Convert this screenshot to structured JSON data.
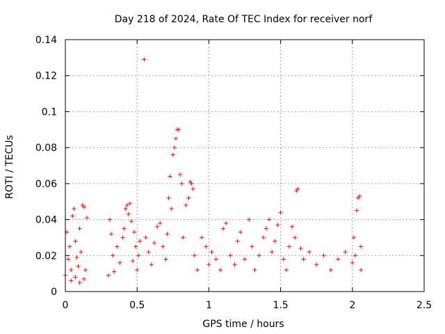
{
  "chart_data": {
    "type": "scatter",
    "title": "Day 218 of 2024, Rate Of TEC Index for receiver norf",
    "xlabel": "GPS time / hours",
    "ylabel": "ROTI / TECUs",
    "xlim": [
      0,
      2.5
    ],
    "ylim": [
      0,
      0.14
    ],
    "xticks": [
      0,
      0.5,
      1,
      1.5,
      2,
      2.5
    ],
    "xtick_labels": [
      "0",
      "0.5",
      "1",
      "1.5",
      "2",
      "2.5"
    ],
    "yticks": [
      0,
      0.02,
      0.04,
      0.06,
      0.08,
      0.1,
      0.12,
      0.14
    ],
    "ytick_labels": [
      "0",
      "0.02",
      "0.04",
      "0.06",
      "0.08",
      "0.1",
      "0.12",
      "0.14"
    ],
    "grid": true,
    "marker": "+",
    "series": [
      {
        "name": "ROTI",
        "color": "#ff0000",
        "points": [
          [
            0.0,
            0.009
          ],
          [
            0.01,
            0.033
          ],
          [
            0.02,
            0.018
          ],
          [
            0.03,
            0.025
          ],
          [
            0.04,
            0.012
          ],
          [
            0.05,
            0.042
          ],
          [
            0.06,
            0.046
          ],
          [
            0.07,
            0.028
          ],
          [
            0.08,
            0.019
          ],
          [
            0.09,
            0.014
          ],
          [
            0.1,
            0.035
          ],
          [
            0.11,
            0.022
          ],
          [
            0.12,
            0.048
          ],
          [
            0.13,
            0.047
          ],
          [
            0.14,
            0.012
          ],
          [
            0.15,
            0.041
          ],
          [
            0.04,
            0.006
          ],
          [
            0.07,
            0.008
          ],
          [
            0.1,
            0.005
          ],
          [
            0.13,
            0.007
          ],
          [
            0.3,
            0.009
          ],
          [
            0.31,
            0.04
          ],
          [
            0.32,
            0.032
          ],
          [
            0.33,
            0.02
          ],
          [
            0.34,
            0.011
          ],
          [
            0.36,
            0.025
          ],
          [
            0.38,
            0.016
          ],
          [
            0.4,
            0.03
          ],
          [
            0.41,
            0.035
          ],
          [
            0.42,
            0.046
          ],
          [
            0.43,
            0.048
          ],
          [
            0.44,
            0.043
          ],
          [
            0.45,
            0.049
          ],
          [
            0.46,
            0.039
          ],
          [
            0.47,
            0.017
          ],
          [
            0.48,
            0.033
          ],
          [
            0.49,
            0.025
          ],
          [
            0.5,
            0.012
          ],
          [
            0.51,
            0.02
          ],
          [
            0.52,
            0.028
          ],
          [
            0.55,
            0.129
          ],
          [
            0.56,
            0.03
          ],
          [
            0.58,
            0.022
          ],
          [
            0.6,
            0.015
          ],
          [
            0.62,
            0.027
          ],
          [
            0.64,
            0.036
          ],
          [
            0.66,
            0.038
          ],
          [
            0.68,
            0.025
          ],
          [
            0.7,
            0.018
          ],
          [
            0.71,
            0.032
          ],
          [
            0.72,
            0.052
          ],
          [
            0.73,
            0.064
          ],
          [
            0.74,
            0.046
          ],
          [
            0.75,
            0.076
          ],
          [
            0.76,
            0.08
          ],
          [
            0.77,
            0.085
          ],
          [
            0.78,
            0.09
          ],
          [
            0.79,
            0.09
          ],
          [
            0.8,
            0.065
          ],
          [
            0.81,
            0.06
          ],
          [
            0.82,
            0.03
          ],
          [
            0.84,
            0.048
          ],
          [
            0.86,
            0.052
          ],
          [
            0.87,
            0.061
          ],
          [
            0.88,
            0.06
          ],
          [
            0.89,
            0.057
          ],
          [
            0.9,
            0.02
          ],
          [
            0.92,
            0.012
          ],
          [
            0.95,
            0.03
          ],
          [
            0.98,
            0.025
          ],
          [
            1.0,
            0.015
          ],
          [
            1.02,
            0.022
          ],
          [
            1.05,
            0.018
          ],
          [
            1.08,
            0.012
          ],
          [
            1.1,
            0.035
          ],
          [
            1.12,
            0.038
          ],
          [
            1.15,
            0.02
          ],
          [
            1.18,
            0.015
          ],
          [
            1.2,
            0.028
          ],
          [
            1.22,
            0.033
          ],
          [
            1.25,
            0.018
          ],
          [
            1.28,
            0.04
          ],
          [
            1.3,
            0.025
          ],
          [
            1.32,
            0.012
          ],
          [
            1.35,
            0.02
          ],
          [
            1.38,
            0.03
          ],
          [
            1.4,
            0.035
          ],
          [
            1.42,
            0.04
          ],
          [
            1.44,
            0.022
          ],
          [
            1.46,
            0.028
          ],
          [
            1.48,
            0.037
          ],
          [
            1.5,
            0.044
          ],
          [
            1.52,
            0.018
          ],
          [
            1.54,
            0.012
          ],
          [
            1.56,
            0.025
          ],
          [
            1.58,
            0.036
          ],
          [
            1.6,
            0.03
          ],
          [
            1.61,
            0.056
          ],
          [
            1.62,
            0.057
          ],
          [
            1.64,
            0.024
          ],
          [
            1.66,
            0.018
          ],
          [
            1.7,
            0.022
          ],
          [
            1.75,
            0.015
          ],
          [
            1.8,
            0.02
          ],
          [
            1.85,
            0.012
          ],
          [
            1.9,
            0.018
          ],
          [
            1.95,
            0.022
          ],
          [
            2.0,
            0.016
          ],
          [
            2.01,
            0.03
          ],
          [
            2.02,
            0.02
          ],
          [
            2.03,
            0.045
          ],
          [
            2.04,
            0.052
          ],
          [
            2.05,
            0.053
          ],
          [
            2.06,
            0.025
          ],
          [
            2.06,
            0.012
          ]
        ]
      }
    ]
  }
}
